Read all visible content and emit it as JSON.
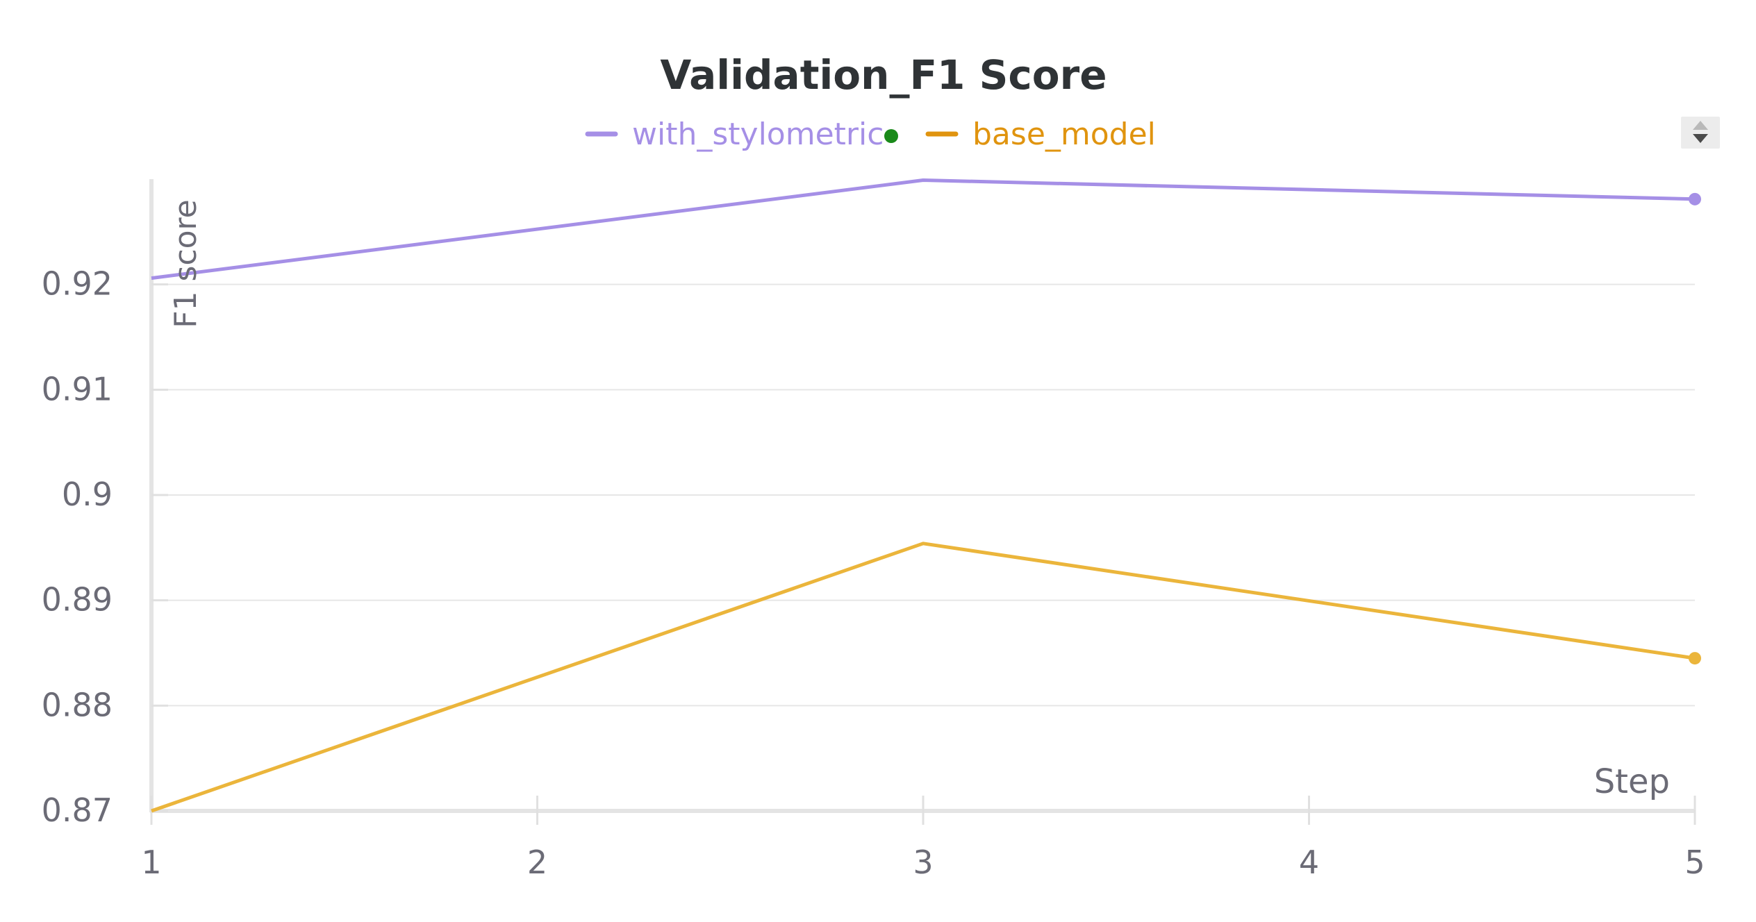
{
  "chart_data": {
    "type": "line",
    "title": "Validation_F1 Score",
    "xlabel": "Step",
    "ylabel": "F1 score",
    "x": [
      1,
      2,
      3,
      4,
      5
    ],
    "x_ticks": [
      "1",
      "2",
      "3",
      "4",
      "5"
    ],
    "y_ticks": [
      0.87,
      0.88,
      0.89,
      0.9,
      0.91,
      0.92
    ],
    "y_tick_labels": [
      "0.87",
      "0.88",
      "0.89",
      "0.9",
      "0.91",
      "0.92"
    ],
    "xlim": [
      1,
      5
    ],
    "ylim": [
      0.87,
      0.93
    ],
    "grid": true,
    "legend_position": "top-center",
    "series": [
      {
        "name": "with_stylometric",
        "x": [
          1,
          3,
          5
        ],
        "values": [
          0.9206,
          0.9299,
          0.9281
        ],
        "color": "#a58fe6",
        "legend_color": "#a58fe6",
        "legend_dot_color": "#1a8a1a"
      },
      {
        "name": "base_model",
        "x": [
          1,
          3,
          5
        ],
        "values": [
          0.87,
          0.8954,
          0.8845
        ],
        "color": "#ebb53b",
        "legend_color": "#e0940f"
      }
    ]
  }
}
